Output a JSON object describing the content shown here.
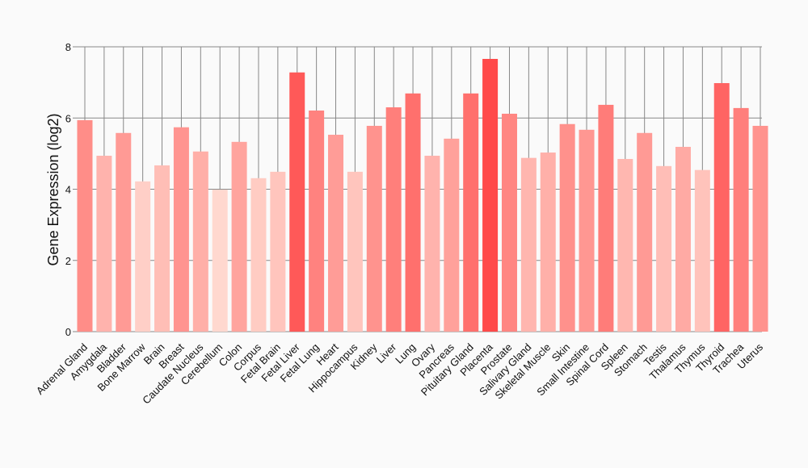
{
  "chart_data": {
    "type": "bar",
    "title": "",
    "xlabel": "",
    "ylabel": "Gene Expression (log2)",
    "ylim": [
      0,
      8
    ],
    "yticks": [
      0,
      2,
      4,
      6,
      8
    ],
    "grid": true,
    "colors": {
      "low": "#FFD8CF",
      "high": "#FF4A4A",
      "grid": "#888888"
    },
    "categories": [
      "Adrenal Gland",
      "Amygdala",
      "Bladder",
      "Bone Marrow",
      "Brain",
      "Breast",
      "Caudate Nucleus",
      "Cerebellum",
      "Colon",
      "Corpus",
      "Fetal Brain",
      "Fetal Liver",
      "Fetal Lung",
      "Heart",
      "Hippocampus",
      "Kidney",
      "Liver",
      "Lung",
      "Ovary",
      "Pancreas",
      "Pituitary Gland",
      "Placenta",
      "Prostate",
      "Salivary Gland",
      "Skeletal Muscle",
      "Skin",
      "Small Intestine",
      "Spinal Cord",
      "Spleen",
      "Stomach",
      "Testis",
      "Thalamus",
      "Thymus",
      "Thyroid",
      "Trachea",
      "Uterus"
    ],
    "values": [
      5.94,
      4.94,
      5.58,
      4.22,
      4.67,
      5.74,
      5.06,
      3.99,
      5.33,
      4.31,
      4.49,
      7.28,
      6.21,
      5.53,
      4.49,
      5.78,
      6.3,
      6.69,
      4.94,
      5.42,
      6.69,
      7.66,
      6.12,
      4.88,
      5.03,
      5.83,
      5.67,
      6.37,
      4.85,
      5.58,
      4.65,
      5.19,
      4.54,
      6.98,
      6.28,
      5.78
    ]
  }
}
